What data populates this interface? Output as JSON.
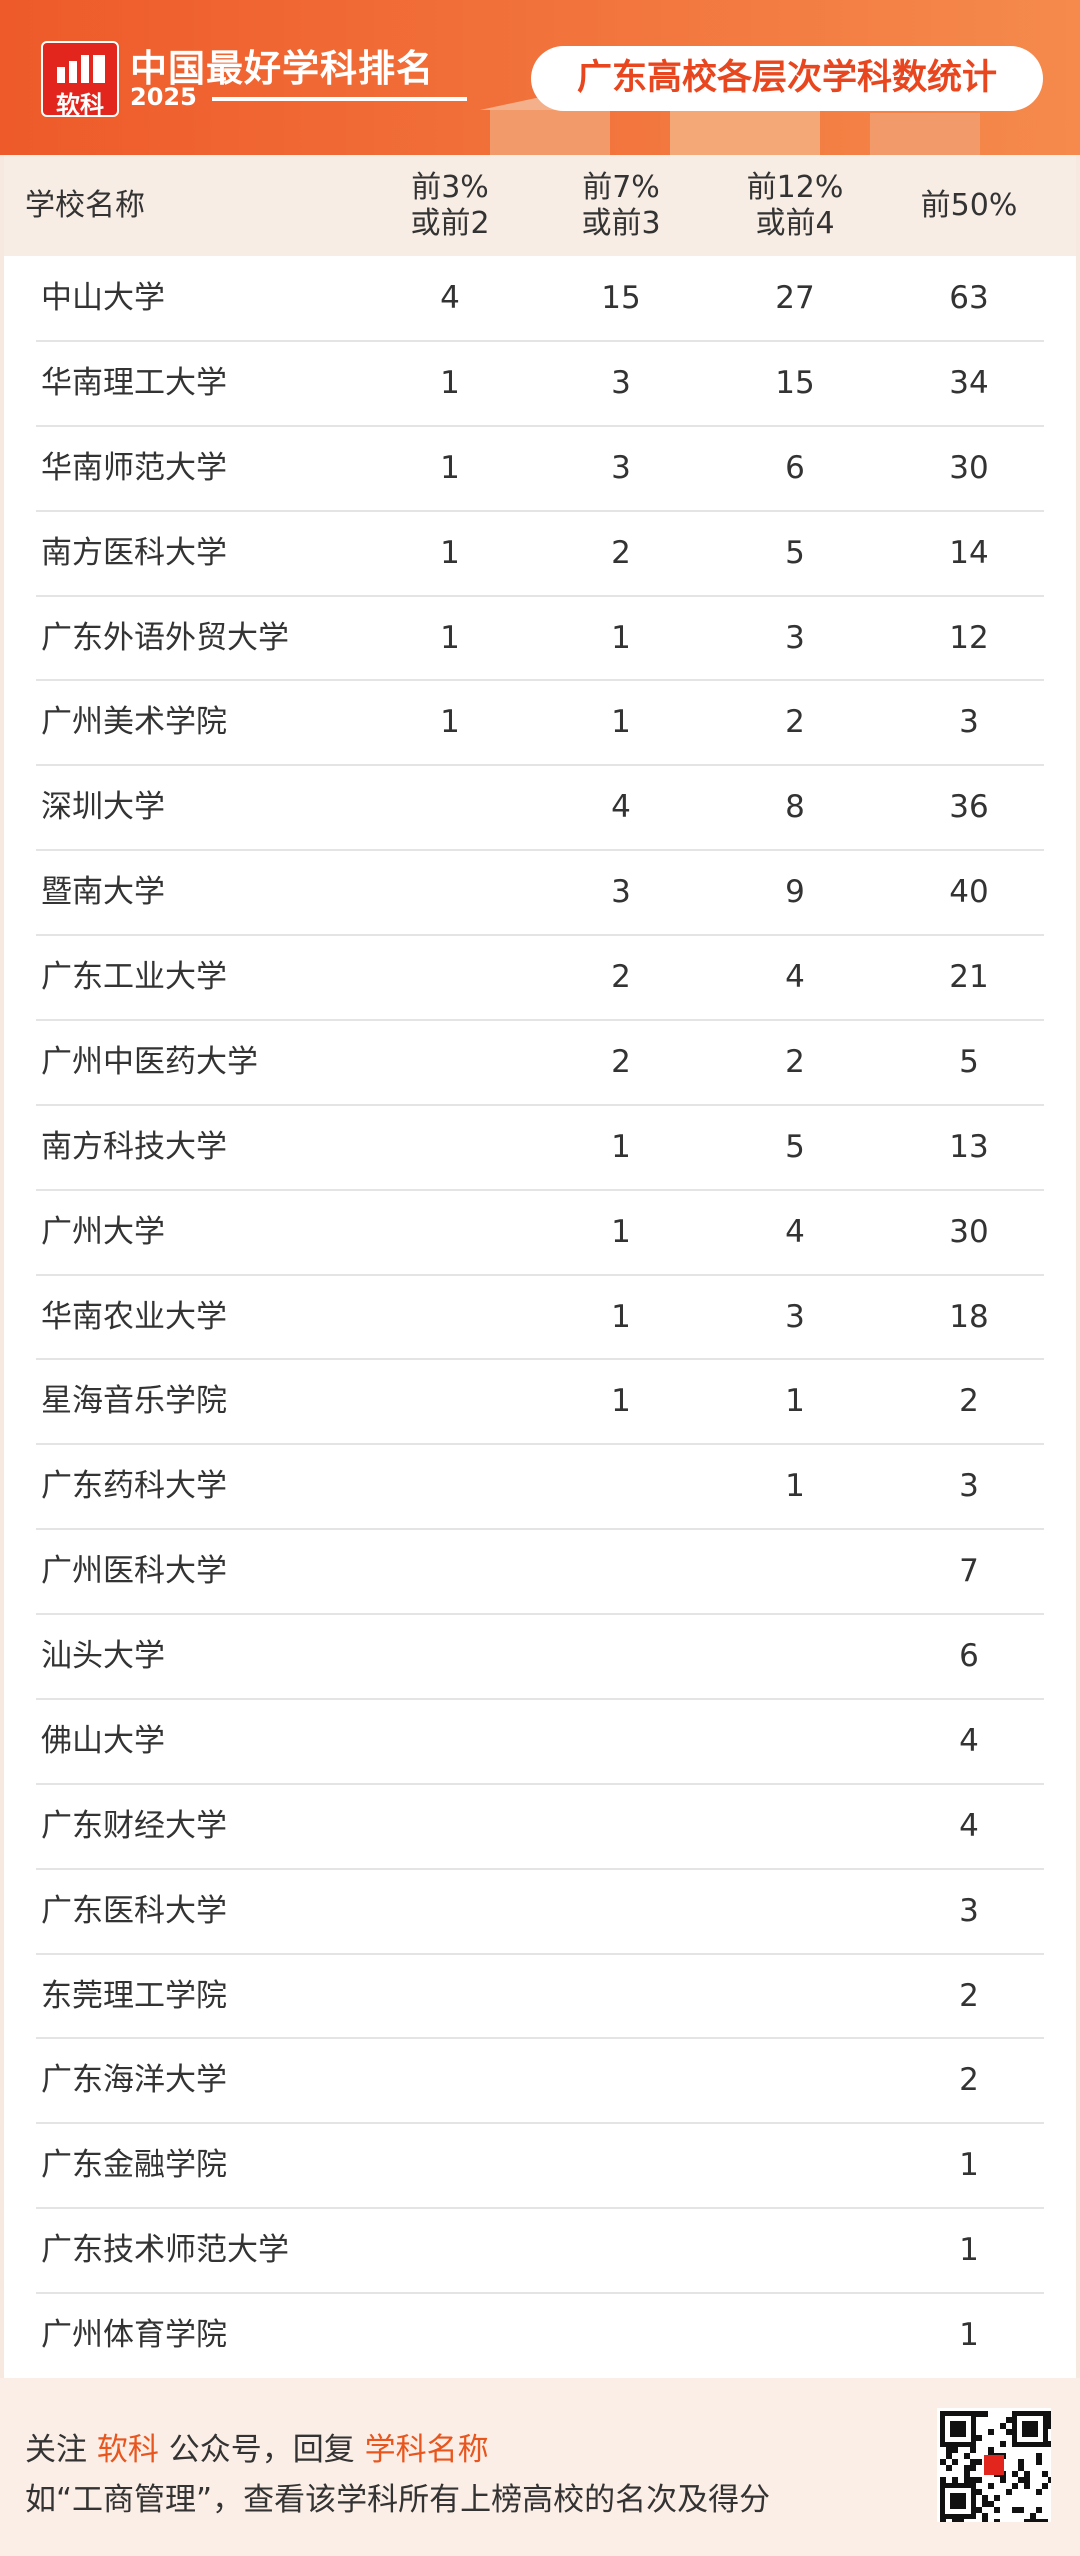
{
  "header": {
    "logo_text": "软科",
    "title": "中国最好学科排名",
    "year": "2025",
    "subtitle": "广东高校各层次学科数统计"
  },
  "table": {
    "columns": [
      [
        "学校名称"
      ],
      [
        "前3%",
        "或前2"
      ],
      [
        "前7%",
        "或前3"
      ],
      [
        "前12%",
        "或前4"
      ],
      [
        "前50%"
      ]
    ],
    "rows": [
      [
        "中山大学",
        4,
        15,
        27,
        63
      ],
      [
        "华南理工大学",
        1,
        3,
        15,
        34
      ],
      [
        "华南师范大学",
        1,
        3,
        6,
        30
      ],
      [
        "南方医科大学",
        1,
        2,
        5,
        14
      ],
      [
        "广东外语外贸大学",
        1,
        1,
        3,
        12
      ],
      [
        "广州美术学院",
        1,
        1,
        2,
        3
      ],
      [
        "深圳大学",
        null,
        4,
        8,
        36
      ],
      [
        "暨南大学",
        null,
        3,
        9,
        40
      ],
      [
        "广东工业大学",
        null,
        2,
        4,
        21
      ],
      [
        "广州中医药大学",
        null,
        2,
        2,
        5
      ],
      [
        "南方科技大学",
        null,
        1,
        5,
        13
      ],
      [
        "广州大学",
        null,
        1,
        4,
        30
      ],
      [
        "华南农业大学",
        null,
        1,
        3,
        18
      ],
      [
        "星海音乐学院",
        null,
        1,
        1,
        2
      ],
      [
        "广东药科大学",
        null,
        null,
        1,
        3
      ],
      [
        "广州医科大学",
        null,
        null,
        null,
        7
      ],
      [
        "汕头大学",
        null,
        null,
        null,
        6
      ],
      [
        "佛山大学",
        null,
        null,
        null,
        4
      ],
      [
        "广东财经大学",
        null,
        null,
        null,
        4
      ],
      [
        "广东医科大学",
        null,
        null,
        null,
        3
      ],
      [
        "东莞理工学院",
        null,
        null,
        null,
        2
      ],
      [
        "广东海洋大学",
        null,
        null,
        null,
        2
      ],
      [
        "广东金融学院",
        null,
        null,
        null,
        1
      ],
      [
        "广东技术师范大学",
        null,
        null,
        null,
        1
      ],
      [
        "广州体育学院",
        null,
        null,
        null,
        1
      ]
    ]
  },
  "footer": {
    "line1": [
      "关注",
      "软科",
      "公众号，回复",
      "学科名称"
    ],
    "line2": "如“工商管理”，查看该学科所有上榜高校的名次及得分"
  }
}
